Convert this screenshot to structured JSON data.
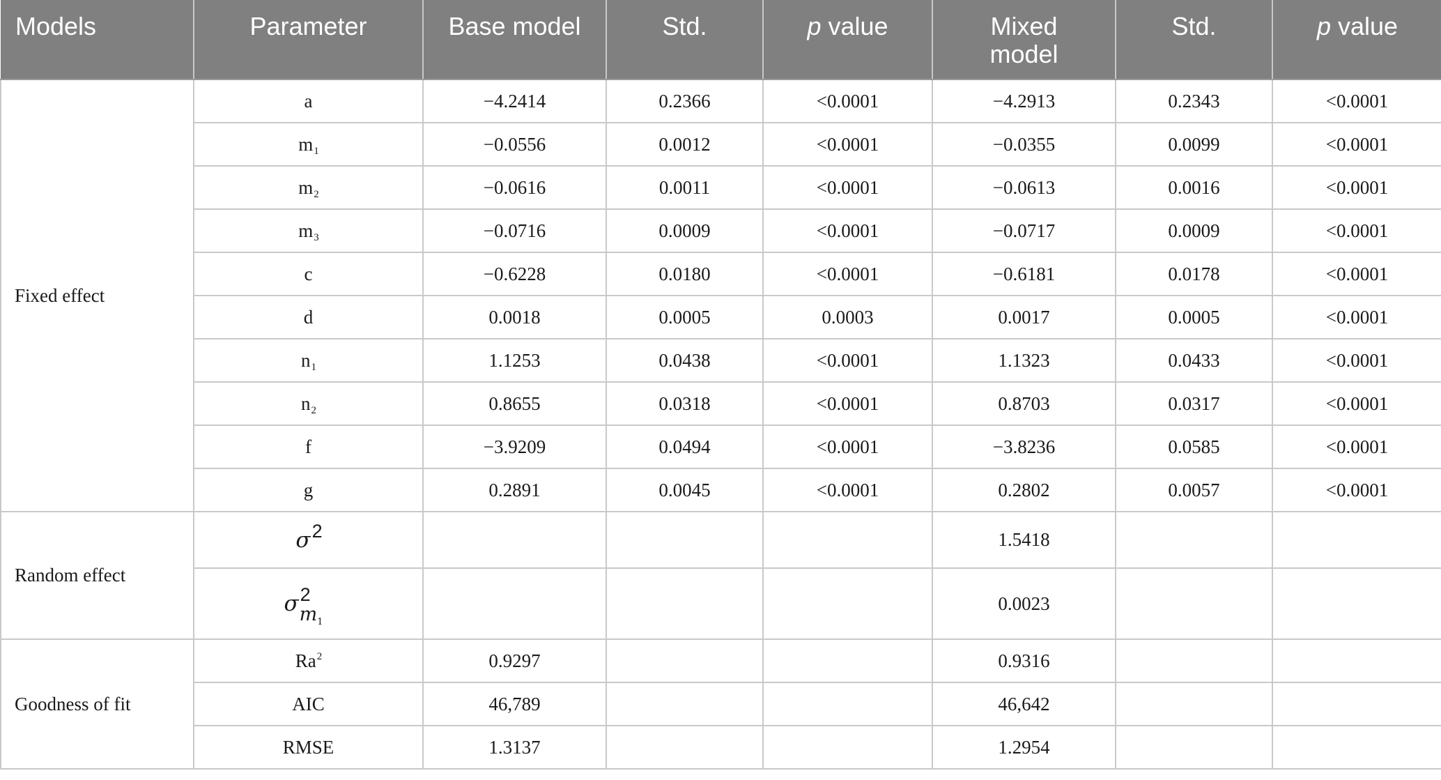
{
  "header": {
    "col_models": "Models",
    "col_parameter": "Parameter",
    "col_base_model": "Base model",
    "col_std_1": "Std.",
    "col_p_value_1_italic": "p",
    "col_p_value_1_rest": " value",
    "col_mixed_model_line1": "Mixed",
    "col_mixed_model_line2": "model",
    "col_std_2": "Std.",
    "col_p_value_2_italic": "p",
    "col_p_value_2_rest": " value"
  },
  "groups": {
    "fixed_effect": "Fixed effect",
    "random_effect": "Random effect",
    "goodness_of_fit": "Goodness of fit"
  },
  "fixed_rows": [
    {
      "param": "a",
      "param_sub": "",
      "base": "−4.2414",
      "std1": "0.2366",
      "p1": "<0.0001",
      "mixed": "−4.2913",
      "std2": "0.2343",
      "p2": "<0.0001"
    },
    {
      "param": "m",
      "param_sub": "1",
      "base": "−0.0556",
      "std1": "0.0012",
      "p1": "<0.0001",
      "mixed": "−0.0355",
      "std2": "0.0099",
      "p2": "<0.0001"
    },
    {
      "param": "m",
      "param_sub": "2",
      "base": "−0.0616",
      "std1": "0.0011",
      "p1": "<0.0001",
      "mixed": "−0.0613",
      "std2": "0.0016",
      "p2": "<0.0001"
    },
    {
      "param": "m",
      "param_sub": "3",
      "base": "−0.0716",
      "std1": "0.0009",
      "p1": "<0.0001",
      "mixed": "−0.0717",
      "std2": "0.0009",
      "p2": "<0.0001"
    },
    {
      "param": "c",
      "param_sub": "",
      "base": "−0.6228",
      "std1": "0.0180",
      "p1": "<0.0001",
      "mixed": "−0.6181",
      "std2": "0.0178",
      "p2": "<0.0001"
    },
    {
      "param": "d",
      "param_sub": "",
      "base": "0.0018",
      "std1": "0.0005",
      "p1": "0.0003",
      "mixed": "0.0017",
      "std2": "0.0005",
      "p2": "<0.0001"
    },
    {
      "param": "n",
      "param_sub": "1",
      "base": "1.1253",
      "std1": "0.0438",
      "p1": "<0.0001",
      "mixed": "1.1323",
      "std2": "0.0433",
      "p2": "<0.0001"
    },
    {
      "param": "n",
      "param_sub": "2",
      "base": "0.8655",
      "std1": "0.0318",
      "p1": "<0.0001",
      "mixed": "0.8703",
      "std2": "0.0317",
      "p2": "<0.0001"
    },
    {
      "param": "f",
      "param_sub": "",
      "base": "−3.9209",
      "std1": "0.0494",
      "p1": "<0.0001",
      "mixed": "−3.8236",
      "std2": "0.0585",
      "p2": "<0.0001"
    },
    {
      "param": "g",
      "param_sub": "",
      "base": "0.2891",
      "std1": "0.0045",
      "p1": "<0.0001",
      "mixed": "0.2802",
      "std2": "0.0057",
      "p2": "<0.0001"
    }
  ],
  "random_rows": [
    {
      "sigma": "σ",
      "sup": "2",
      "sub_m": "",
      "sub_1": "",
      "mixed": "1.5418"
    },
    {
      "sigma": "σ",
      "sup": "2",
      "sub_m": "m",
      "sub_1": "1",
      "mixed": "0.0023"
    }
  ],
  "fit_rows": [
    {
      "param": "Ra",
      "param_sup": "2",
      "base": "0.9297",
      "mixed": "0.9316"
    },
    {
      "param": "AIC",
      "param_sup": "",
      "base": "46,789",
      "mixed": "46,642"
    },
    {
      "param": "RMSE",
      "param_sup": "",
      "base": "1.3137",
      "mixed": "1.2954"
    }
  ]
}
